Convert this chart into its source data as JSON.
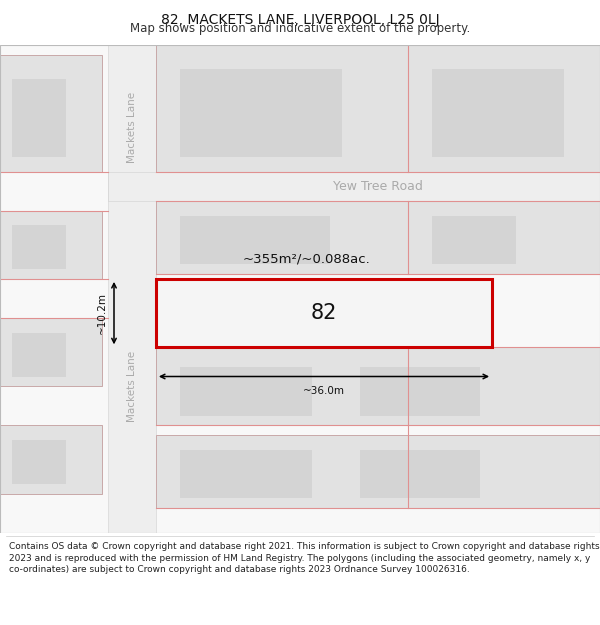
{
  "title": "82, MACKETS LANE, LIVERPOOL, L25 0LJ",
  "subtitle": "Map shows position and indicative extent of the property.",
  "footer": "Contains OS data © Crown copyright and database right 2021. This information is subject to Crown copyright and database rights 2023 and is reproduced with the permission of HM Land Registry. The polygons (including the associated geometry, namely x, y co-ordinates) are subject to Crown copyright and database rights 2023 Ordnance Survey 100026316.",
  "bg_color": "#ffffff",
  "property_outline": "#cc0000",
  "block_fill": "#e2e2e2",
  "block_edge": "#c8a8a8",
  "inner_fill": "#d4d4d4",
  "road_fill": "#eeeeee",
  "road_label_color": "#aaaaaa",
  "grid_line_color": "#e09090",
  "yew_tree_road_label": "Yew Tree Road",
  "mackets_lane_label": "Mackets Lane",
  "area_label": "~355m²/~0.088ac.",
  "number_label": "82",
  "width_label": "~36.0m",
  "height_label": "~10.2m",
  "title_fontsize": 10,
  "subtitle_fontsize": 8.5,
  "footer_fontsize": 6.5
}
